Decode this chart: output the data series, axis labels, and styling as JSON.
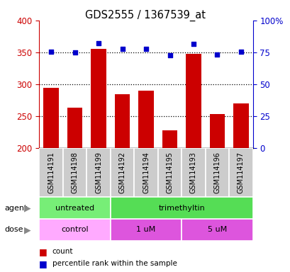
{
  "title": "GDS2555 / 1367539_at",
  "samples": [
    "GSM114191",
    "GSM114198",
    "GSM114199",
    "GSM114192",
    "GSM114194",
    "GSM114195",
    "GSM114193",
    "GSM114196",
    "GSM114197"
  ],
  "counts": [
    295,
    263,
    355,
    285,
    290,
    228,
    348,
    253,
    270
  ],
  "percentiles": [
    75.5,
    75.0,
    82.0,
    78.0,
    77.5,
    73.0,
    81.5,
    73.5,
    75.5
  ],
  "ylim_left": [
    200,
    400
  ],
  "ylim_right": [
    0,
    100
  ],
  "yticks_left": [
    200,
    250,
    300,
    350,
    400
  ],
  "yticks_right": [
    0,
    25,
    50,
    75,
    100
  ],
  "bar_color": "#cc0000",
  "dot_color": "#0000cc",
  "bar_bottom": 200,
  "agent_untreated_color": "#77ee77",
  "agent_trimethyltin_color": "#55dd55",
  "dose_control_color": "#ffaaff",
  "dose_1um_color": "#dd55dd",
  "dose_5um_color": "#dd55dd",
  "sample_box_color": "#cccccc",
  "axis_color_left": "#cc0000",
  "axis_color_right": "#0000cc",
  "grid_yticks": [
    250,
    300,
    350
  ],
  "agent_groups": [
    {
      "label": "untreated",
      "start": 0,
      "end": 3
    },
    {
      "label": "trimethyltin",
      "start": 3,
      "end": 9
    }
  ],
  "dose_groups": [
    {
      "label": "control",
      "start": 0,
      "end": 3
    },
    {
      "label": "1 uM",
      "start": 3,
      "end": 6
    },
    {
      "label": "5 uM",
      "start": 6,
      "end": 9
    }
  ]
}
